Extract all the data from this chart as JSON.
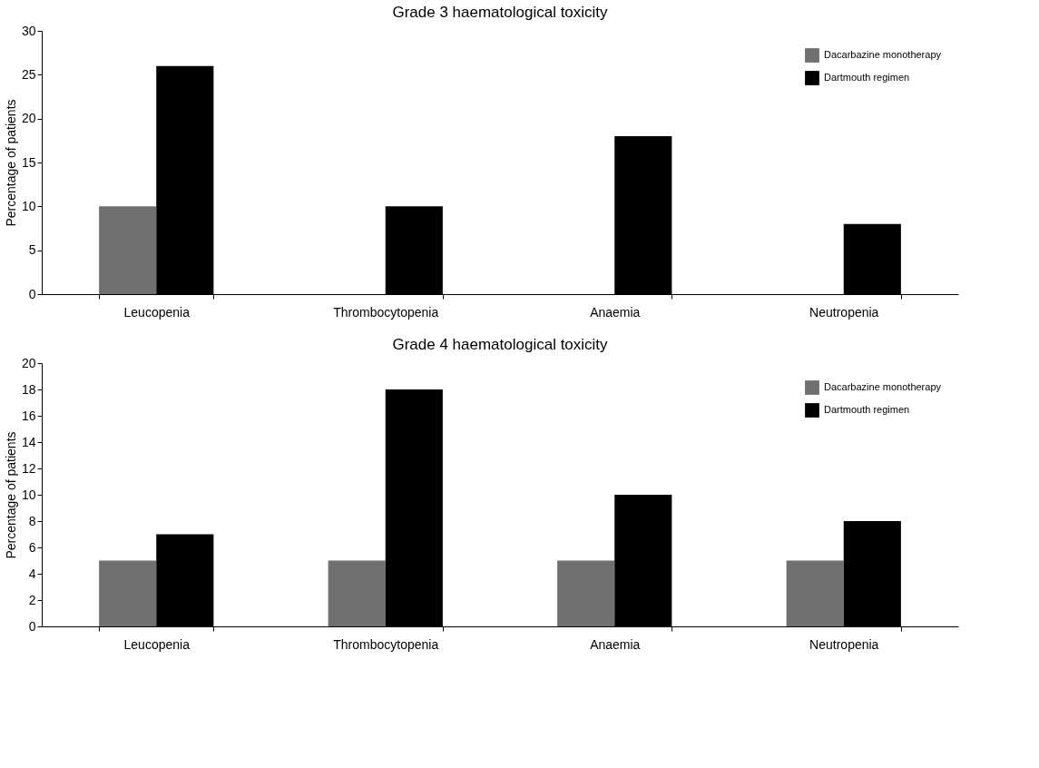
{
  "chart_data": [
    {
      "type": "bar",
      "title": "Grade 3 haematological toxicity",
      "ylabel": "Percentage of patients",
      "categories": [
        "Leucopenia",
        "Thrombocytopenia",
        "Anaemia",
        "Neutropenia"
      ],
      "series": [
        {
          "name": "Dacarbazine monotherapy",
          "color": "#707070",
          "values": [
            10,
            0,
            0,
            0
          ]
        },
        {
          "name": "Dartmouth regimen",
          "color": "#000000",
          "values": [
            26,
            10,
            18,
            8
          ]
        }
      ],
      "ylim": [
        0,
        30
      ],
      "yticks": [
        0,
        5,
        10,
        15,
        20,
        25,
        30
      ],
      "grid": false,
      "legend": "top right"
    },
    {
      "type": "bar",
      "title": "Grade 4 haematological toxicity",
      "ylabel": "Percentage of patients",
      "categories": [
        "Leucopenia",
        "Thrombocytopenia",
        "Anaemia",
        "Neutropenia"
      ],
      "series": [
        {
          "name": "Dacarbazine monotherapy",
          "color": "#707070",
          "values": [
            5,
            5,
            5,
            5
          ]
        },
        {
          "name": "Dartmouth regimen",
          "color": "#000000",
          "values": [
            7,
            18,
            10,
            8
          ]
        }
      ],
      "ylim": [
        0,
        20
      ],
      "yticks": [
        0,
        2,
        4,
        6,
        8,
        10,
        12,
        14,
        16,
        18,
        20
      ],
      "grid": false,
      "legend": "top right"
    }
  ]
}
